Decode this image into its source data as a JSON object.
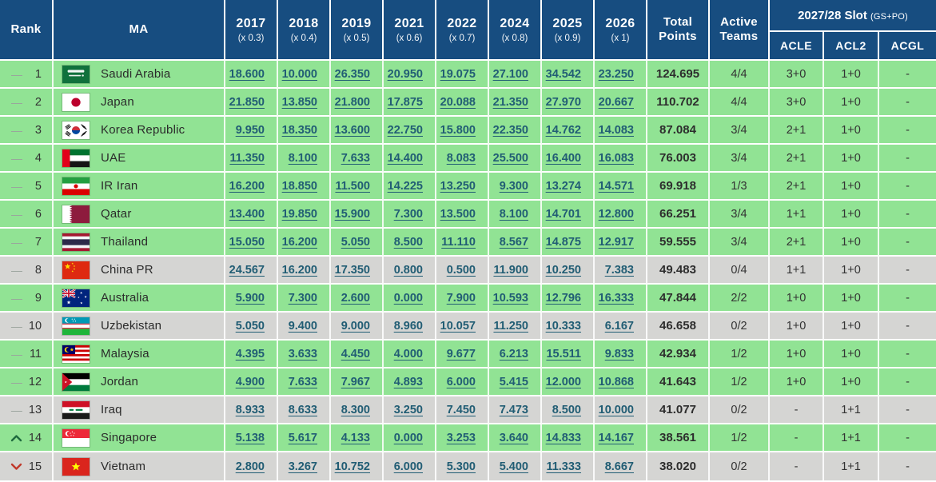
{
  "colors": {
    "header_bg": "#174d80",
    "row_green": "#91e394",
    "row_gray": "#d5d5d3",
    "link": "#215d74",
    "up": "#1f6b3e",
    "down": "#c0392b",
    "dash": "#9aa39c",
    "text": "#2e2e2e"
  },
  "table": {
    "columns": {
      "rank_label": "Rank",
      "ma_label": "MA",
      "years": [
        {
          "year": "2017",
          "weight": "(x 0.3)"
        },
        {
          "year": "2018",
          "weight": "(x 0.4)"
        },
        {
          "year": "2019",
          "weight": "(x 0.5)"
        },
        {
          "year": "2021",
          "weight": "(x 0.6)"
        },
        {
          "year": "2022",
          "weight": "(x 0.7)"
        },
        {
          "year": "2024",
          "weight": "(x 0.8)"
        },
        {
          "year": "2025",
          "weight": "(x 0.9)"
        },
        {
          "year": "2026",
          "weight": "(x 1)"
        }
      ],
      "total_label": "Total Points",
      "active_label": "Active Teams",
      "slot_group": {
        "title": "2027/28 Slot",
        "subtitle": "(GS+PO)",
        "subcolumns": [
          "ACLE",
          "ACL2",
          "ACGL"
        ]
      }
    },
    "rows": [
      {
        "rank": "1",
        "trend": "same",
        "country": "Saudi Arabia",
        "flag_icon": "flag-saudi-arabia",
        "status": "active",
        "values": [
          "18.600",
          "10.000",
          "26.350",
          "20.950",
          "19.075",
          "27.100",
          "34.542",
          "23.250"
        ],
        "total": "124.695",
        "active_teams": "4/4",
        "acle": "3+0",
        "acl2": "1+0",
        "acgl": "-"
      },
      {
        "rank": "2",
        "trend": "same",
        "country": "Japan",
        "flag_icon": "flag-japan",
        "status": "active",
        "values": [
          "21.850",
          "13.850",
          "21.800",
          "17.875",
          "20.088",
          "21.350",
          "27.970",
          "20.667"
        ],
        "total": "110.702",
        "active_teams": "4/4",
        "acle": "3+0",
        "acl2": "1+0",
        "acgl": "-"
      },
      {
        "rank": "3",
        "trend": "same",
        "country": "Korea Republic",
        "flag_icon": "flag-korea-republic",
        "status": "active",
        "values": [
          "9.950",
          "18.350",
          "13.600",
          "22.750",
          "15.800",
          "22.350",
          "14.762",
          "14.083"
        ],
        "total": "87.084",
        "active_teams": "3/4",
        "acle": "2+1",
        "acl2": "1+0",
        "acgl": "-"
      },
      {
        "rank": "4",
        "trend": "same",
        "country": "UAE",
        "flag_icon": "flag-uae",
        "status": "active",
        "values": [
          "11.350",
          "8.100",
          "7.633",
          "14.400",
          "8.083",
          "25.500",
          "16.400",
          "16.083"
        ],
        "total": "76.003",
        "active_teams": "3/4",
        "acle": "2+1",
        "acl2": "1+0",
        "acgl": "-"
      },
      {
        "rank": "5",
        "trend": "same",
        "country": "IR Iran",
        "flag_icon": "flag-ir-iran",
        "status": "active",
        "values": [
          "16.200",
          "18.850",
          "11.500",
          "14.225",
          "13.250",
          "9.300",
          "13.274",
          "14.571"
        ],
        "total": "69.918",
        "active_teams": "1/3",
        "acle": "2+1",
        "acl2": "1+0",
        "acgl": "-"
      },
      {
        "rank": "6",
        "trend": "same",
        "country": "Qatar",
        "flag_icon": "flag-qatar",
        "status": "active",
        "values": [
          "13.400",
          "19.850",
          "15.900",
          "7.300",
          "13.500",
          "8.100",
          "14.701",
          "12.800"
        ],
        "total": "66.251",
        "active_teams": "3/4",
        "acle": "1+1",
        "acl2": "1+0",
        "acgl": "-"
      },
      {
        "rank": "7",
        "trend": "same",
        "country": "Thailand",
        "flag_icon": "flag-thailand",
        "status": "active",
        "values": [
          "15.050",
          "16.200",
          "5.050",
          "8.500",
          "11.110",
          "8.567",
          "14.875",
          "12.917"
        ],
        "total": "59.555",
        "active_teams": "3/4",
        "acle": "2+1",
        "acl2": "1+0",
        "acgl": "-"
      },
      {
        "rank": "8",
        "trend": "same",
        "country": "China PR",
        "flag_icon": "flag-china-pr",
        "status": "inactive",
        "values": [
          "24.567",
          "16.200",
          "17.350",
          "0.800",
          "0.500",
          "11.900",
          "10.250",
          "7.383"
        ],
        "total": "49.483",
        "active_teams": "0/4",
        "acle": "1+1",
        "acl2": "1+0",
        "acgl": "-"
      },
      {
        "rank": "9",
        "trend": "same",
        "country": "Australia",
        "flag_icon": "flag-australia",
        "status": "active",
        "values": [
          "5.900",
          "7.300",
          "2.600",
          "0.000",
          "7.900",
          "10.593",
          "12.796",
          "16.333"
        ],
        "total": "47.844",
        "active_teams": "2/2",
        "acle": "1+0",
        "acl2": "1+0",
        "acgl": "-"
      },
      {
        "rank": "10",
        "trend": "same",
        "country": "Uzbekistan",
        "flag_icon": "flag-uzbekistan",
        "status": "inactive",
        "values": [
          "5.050",
          "9.400",
          "9.000",
          "8.960",
          "10.057",
          "11.250",
          "10.333",
          "6.167"
        ],
        "total": "46.658",
        "active_teams": "0/2",
        "acle": "1+0",
        "acl2": "1+0",
        "acgl": "-"
      },
      {
        "rank": "11",
        "trend": "same",
        "country": "Malaysia",
        "flag_icon": "flag-malaysia",
        "status": "active",
        "values": [
          "4.395",
          "3.633",
          "4.450",
          "4.000",
          "9.677",
          "6.213",
          "15.511",
          "9.833"
        ],
        "total": "42.934",
        "active_teams": "1/2",
        "acle": "1+0",
        "acl2": "1+0",
        "acgl": "-"
      },
      {
        "rank": "12",
        "trend": "same",
        "country": "Jordan",
        "flag_icon": "flag-jordan",
        "status": "active",
        "values": [
          "4.900",
          "7.633",
          "7.967",
          "4.893",
          "6.000",
          "5.415",
          "12.000",
          "10.868"
        ],
        "total": "41.643",
        "active_teams": "1/2",
        "acle": "1+0",
        "acl2": "1+0",
        "acgl": "-"
      },
      {
        "rank": "13",
        "trend": "same",
        "country": "Iraq",
        "flag_icon": "flag-iraq",
        "status": "inactive",
        "values": [
          "8.933",
          "8.633",
          "8.300",
          "3.250",
          "7.450",
          "7.473",
          "8.500",
          "10.000"
        ],
        "total": "41.077",
        "active_teams": "0/2",
        "acle": "-",
        "acl2": "1+1",
        "acgl": "-"
      },
      {
        "rank": "14",
        "trend": "up",
        "country": "Singapore",
        "flag_icon": "flag-singapore",
        "status": "active",
        "values": [
          "5.138",
          "5.617",
          "4.133",
          "0.000",
          "3.253",
          "3.640",
          "14.833",
          "14.167"
        ],
        "total": "38.561",
        "active_teams": "1/2",
        "acle": "-",
        "acl2": "1+1",
        "acgl": "-"
      },
      {
        "rank": "15",
        "trend": "down",
        "country": "Vietnam",
        "flag_icon": "flag-vietnam",
        "status": "inactive",
        "values": [
          "2.800",
          "3.267",
          "10.752",
          "6.000",
          "5.300",
          "5.400",
          "11.333",
          "8.667"
        ],
        "total": "38.020",
        "active_teams": "0/2",
        "acle": "-",
        "acl2": "1+1",
        "acgl": "-"
      }
    ]
  }
}
